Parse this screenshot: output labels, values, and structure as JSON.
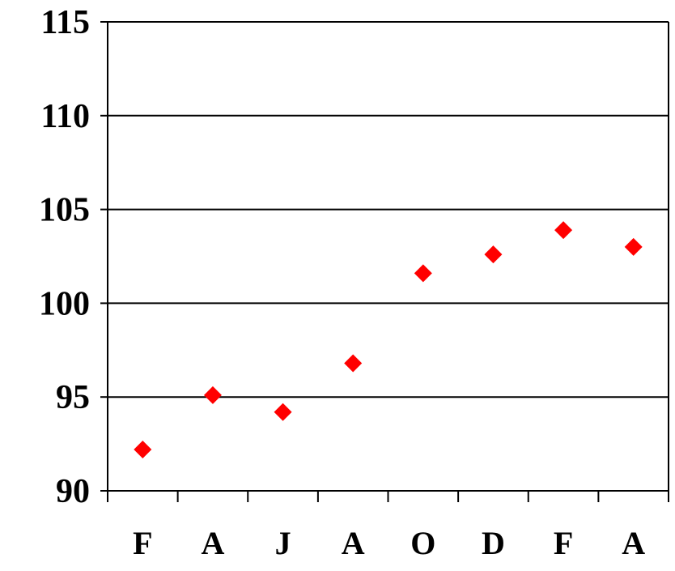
{
  "chart_data": {
    "type": "scatter",
    "title": "",
    "xlabel": "",
    "ylabel": "",
    "categories": [
      "F",
      "A",
      "J",
      "A",
      "O",
      "D",
      "F",
      "A"
    ],
    "series": [
      {
        "values": [
          92.2,
          95.1,
          94.2,
          96.8,
          101.6,
          102.6,
          103.9,
          103.0
        ]
      }
    ],
    "ylim": [
      90,
      115
    ],
    "yticks": [
      "90",
      "95",
      "100",
      "105",
      "110",
      "115"
    ],
    "grid": "horizontal",
    "marker": "diamond",
    "colors": {
      "marker": "#ff0000",
      "axis": "#000000",
      "grid": "#000000"
    }
  }
}
